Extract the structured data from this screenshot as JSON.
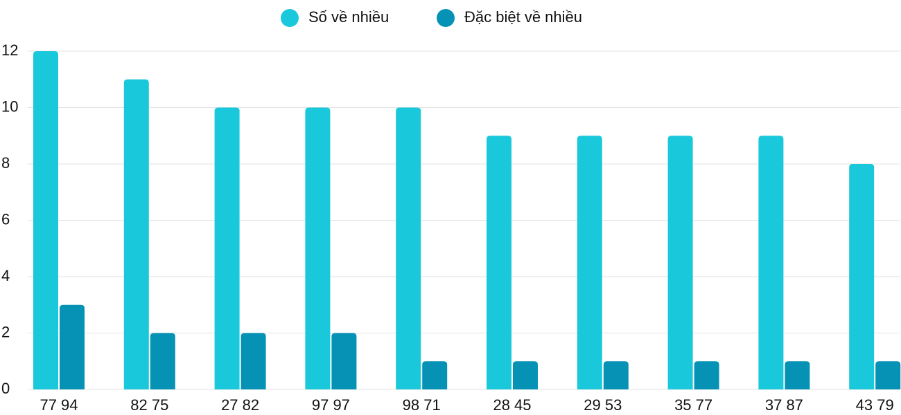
{
  "chart_data": {
    "type": "bar",
    "categories": [
      "77 94",
      "82 75",
      "27 82",
      "97 97",
      "98 71",
      "28 45",
      "29 53",
      "35 77",
      "37 87",
      "43 79"
    ],
    "series": [
      {
        "name": "Số về nhiều",
        "color": "#1ac8db",
        "values": [
          12,
          11,
          10,
          10,
          10,
          9,
          9,
          9,
          9,
          8
        ]
      },
      {
        "name": "Đặc biệt về nhiều",
        "color": "#0592b5",
        "values": [
          3,
          2,
          2,
          2,
          1,
          1,
          1,
          1,
          1,
          1
        ]
      }
    ],
    "ylim": [
      0,
      12
    ],
    "yticks": [
      0,
      2,
      4,
      6,
      8,
      10,
      12
    ],
    "grid": true,
    "legend": "top"
  }
}
